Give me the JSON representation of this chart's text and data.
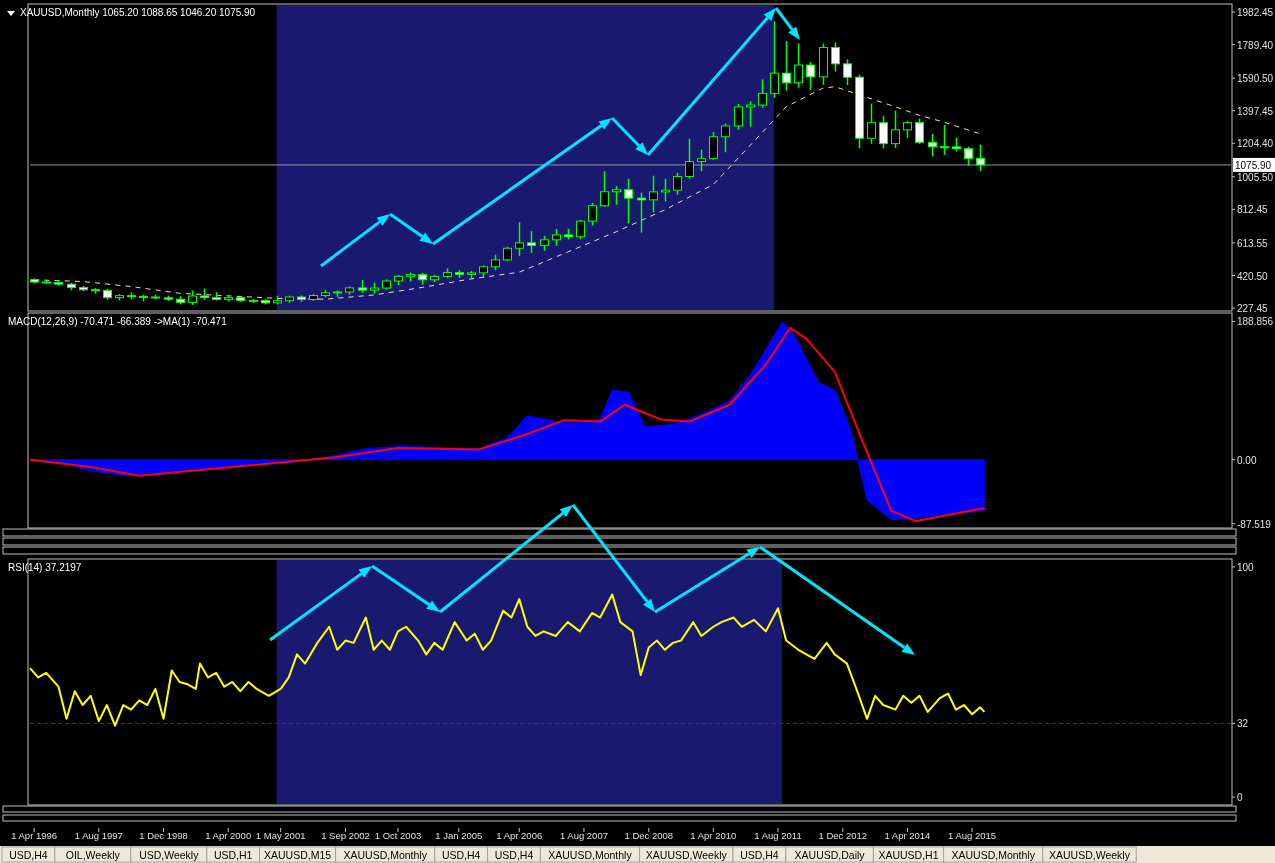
{
  "chart_data": [
    {
      "type": "candlestick",
      "title": "XAUUSD,Monthly  1065.20 1088.65 1046.20 1075.90",
      "color": "#00ff00",
      "tick_labels": "y",
      "xlim": [
        "1996-03",
        "2020-12"
      ],
      "ylim": [
        216,
        2024
      ],
      "yticks": [
        227.45,
        {
          "value": 420.5,
          "label": "420.50"
        },
        613.55,
        812.45,
        {
          "value": 1005.5,
          "label": "1005.50"
        },
        {
          "value": 1204.4,
          "label": "1204.40"
        },
        1397.45,
        {
          "value": 1590.5,
          "label": "1590.50"
        },
        {
          "value": 1789.4,
          "label": "1789.40"
        },
        1982.45
      ],
      "x": [
        "1996-04",
        "1996-07",
        "1996-10",
        "1997-01",
        "1997-04",
        "1997-07",
        "1997-10",
        "1998-01",
        "1998-04",
        "1998-07",
        "1998-10",
        "1999-01",
        "1999-04",
        "1999-07",
        "1999-10",
        "2000-01",
        "2000-04",
        "2000-07",
        "2000-10",
        "2001-01",
        "2001-04",
        "2001-07",
        "2001-10",
        "2002-01",
        "2002-04",
        "2002-07",
        "2002-10",
        "2003-01",
        "2003-04",
        "2003-07",
        "2003-10",
        "2004-01",
        "2004-04",
        "2004-07",
        "2004-10",
        "2005-01",
        "2005-04",
        "2005-07",
        "2005-10",
        "2006-01",
        "2006-04",
        "2006-07",
        "2006-10",
        "2007-01",
        "2007-04",
        "2007-07",
        "2007-10",
        "2008-01",
        "2008-04",
        "2008-07",
        "2008-10",
        "2009-01",
        "2009-04",
        "2009-07",
        "2009-10",
        "2010-01",
        "2010-04",
        "2010-07",
        "2010-10",
        "2011-01",
        "2011-04",
        "2011-07",
        "2011-10",
        "2012-01",
        "2012-04",
        "2012-07",
        "2012-10",
        "2013-01",
        "2013-04",
        "2013-07",
        "2013-10",
        "2014-01",
        "2014-04",
        "2014-07",
        "2014-10",
        "2015-01",
        "2015-04",
        "2015-07",
        "2015-10"
      ],
      "ohlc": [
        [
          396,
          397,
          380,
          382
        ],
        [
          382,
          390,
          378,
          379
        ],
        [
          379,
          385,
          367,
          369
        ],
        [
          369,
          370,
          338,
          349
        ],
        [
          349,
          352,
          335,
          336
        ],
        [
          336,
          340,
          318,
          332
        ],
        [
          332,
          335,
          283,
          289
        ],
        [
          289,
          305,
          279,
          301
        ],
        [
          301,
          315,
          285,
          297
        ],
        [
          297,
          300,
          272,
          293
        ],
        [
          293,
          300,
          285,
          288
        ],
        [
          288,
          295,
          276,
          280
        ],
        [
          280,
          292,
          255,
          261
        ],
        [
          261,
          326,
          252,
          299
        ],
        [
          299,
          338,
          282,
          290
        ],
        [
          290,
          316,
          278,
          279
        ],
        [
          279,
          292,
          272,
          289
        ],
        [
          289,
          291,
          270,
          273
        ],
        [
          273,
          275,
          263,
          273
        ],
        [
          273,
          273,
          255,
          258
        ],
        [
          258,
          295,
          255,
          271
        ],
        [
          271,
          295,
          265,
          293
        ],
        [
          293,
          296,
          270,
          278
        ],
        [
          278,
          304,
          277,
          302
        ],
        [
          302,
          330,
          298,
          318
        ],
        [
          318,
          327,
          299,
          323
        ],
        [
          323,
          350,
          313,
          347
        ],
        [
          347,
          389,
          323,
          334
        ],
        [
          334,
          372,
          319,
          346
        ],
        [
          346,
          391,
          343,
          388
        ],
        [
          388,
          418,
          370,
          416
        ],
        [
          416,
          432,
          390,
          426
        ],
        [
          426,
          430,
          372,
          395
        ],
        [
          395,
          418,
          387,
          415
        ],
        [
          415,
          457,
          411,
          438
        ],
        [
          438,
          446,
          411,
          427
        ],
        [
          427,
          442,
          412,
          436
        ],
        [
          436,
          474,
          416,
          472
        ],
        [
          472,
          538,
          457,
          513
        ],
        [
          513,
          584,
          511,
          582
        ],
        [
          582,
          730,
          541,
          614
        ],
        [
          614,
          677,
          560,
          599
        ],
        [
          599,
          650,
          573,
          632
        ],
        [
          632,
          690,
          603,
          661
        ],
        [
          661,
          692,
          640,
          650
        ],
        [
          650,
          745,
          642,
          743
        ],
        [
          743,
          845,
          722,
          834
        ],
        [
          834,
          1033,
          834,
          917
        ],
        [
          917,
          945,
          846,
          929
        ],
        [
          929,
          988,
          736,
          879
        ],
        [
          879,
          905,
          681,
          869
        ],
        [
          869,
          1006,
          800,
          916
        ],
        [
          916,
          989,
          865,
          926
        ],
        [
          926,
          1023,
          905,
          1007
        ],
        [
          1007,
          1226,
          1000,
          1096
        ],
        [
          1096,
          1161,
          1044,
          1113
        ],
        [
          1113,
          1265,
          1112,
          1243
        ],
        [
          1243,
          1315,
          1157,
          1307
        ],
        [
          1307,
          1431,
          1290,
          1420
        ],
        [
          1420,
          1447,
          1308,
          1431
        ],
        [
          1431,
          1577,
          1420,
          1500
        ],
        [
          1500,
          1921,
          1480,
          1620
        ],
        [
          1620,
          1804,
          1522,
          1563
        ],
        [
          1563,
          1791,
          1540,
          1668
        ],
        [
          1668,
          1680,
          1527,
          1598
        ],
        [
          1598,
          1790,
          1556,
          1772
        ],
        [
          1772,
          1796,
          1635,
          1675
        ],
        [
          1675,
          1696,
          1555,
          1596
        ],
        [
          1596,
          1605,
          1180,
          1234
        ],
        [
          1234,
          1434,
          1208,
          1326
        ],
        [
          1326,
          1361,
          1180,
          1202
        ],
        [
          1202,
          1392,
          1182,
          1284
        ],
        [
          1284,
          1332,
          1240,
          1327
        ],
        [
          1327,
          1345,
          1206,
          1210
        ],
        [
          1210,
          1255,
          1132,
          1184
        ],
        [
          1184,
          1307,
          1142,
          1183
        ],
        [
          1183,
          1232,
          1162,
          1172
        ],
        [
          1172,
          1178,
          1077,
          1115
        ],
        [
          1115,
          1191,
          1046,
          1076
        ]
      ],
      "series": [
        {
          "type": "line",
          "color": "#f5deb3",
          "line_style": "dashed",
          "x": [
            "1996-04",
            "1997-04",
            "1998-04",
            "1999-04",
            "2000-04",
            "2001-04",
            "2002-04",
            "2003-04",
            "2004-04",
            "2005-04",
            "2006-04",
            "2007-04",
            "2008-04",
            "2009-04",
            "2010-04",
            "2011-01",
            "2011-10",
            "2012-07",
            "2012-10",
            "2014-01",
            "2014-07",
            "2015-01",
            "2015-10"
          ],
          "values": [
            395,
            385,
            355,
            315,
            300,
            285,
            280,
            305,
            350,
            400,
            440,
            560,
            680,
            810,
            960,
            1190,
            1420,
            1530,
            1540,
            1420,
            1370,
            1330,
            1260
          ]
        }
      ],
      "ref_lines": [
        {
          "axis": "y",
          "value": 1075.9,
          "label": "1075.90",
          "color": "#8c9aa8"
        }
      ],
      "bands": [
        {
          "axis": "x",
          "from": "2001-04",
          "to": "2011-07",
          "color": "#191970"
        }
      ]
    },
    {
      "type": "area",
      "title": "MACD(12,26,9) -70.471 -66.389  ->MA(1) -70.471",
      "tick_labels": "y",
      "xlim": [
        "1996-03",
        "2020-12"
      ],
      "ylim": [
        -92,
        199
      ],
      "yticks": [
        -87.519,
        {
          "value": 0,
          "label": "0.00"
        },
        188.856
      ],
      "series": [
        {
          "type": "area",
          "color": "#0000ff",
          "x": [
            "1996-03",
            "1996-10",
            "1997-06",
            "1998-03",
            "1998-10",
            "1999-06",
            "2000-06",
            "2001-06",
            "2002-06",
            "2003-02",
            "2003-10",
            "2004-06",
            "2005-06",
            "2006-01",
            "2006-06",
            "2007-01",
            "2007-06",
            "2007-12",
            "2008-03",
            "2008-07",
            "2008-11",
            "2009-06",
            "2010-01",
            "2010-08",
            "2011-01",
            "2011-05",
            "2011-09",
            "2011-12",
            "2012-06",
            "2012-10",
            "2013-02",
            "2013-06",
            "2013-12",
            "2014-06",
            "2015-01",
            "2015-11"
          ],
          "values": [
            0,
            -3,
            -15,
            -22,
            -20,
            -14,
            -8,
            -5,
            5,
            15,
            18,
            17,
            15,
            30,
            60,
            52,
            50,
            55,
            95,
            92,
            45,
            48,
            62,
            80,
            115,
            150,
            188,
            170,
            105,
            95,
            40,
            -55,
            -82,
            -80,
            -75,
            -70
          ]
        },
        {
          "type": "line",
          "color": "#ff0000",
          "x": [
            "1996-03",
            "1997-06",
            "1998-06",
            "2000-01",
            "2002-06",
            "2003-10",
            "2005-06",
            "2006-06",
            "2007-03",
            "2007-12",
            "2008-06",
            "2009-03",
            "2009-10",
            "2010-08",
            "2011-05",
            "2011-11",
            "2012-03",
            "2012-10",
            "2013-06",
            "2013-12",
            "2014-06",
            "2015-11"
          ],
          "values": [
            0,
            -10,
            -22,
            -12,
            3,
            16,
            14,
            35,
            54,
            52,
            75,
            55,
            52,
            75,
            130,
            180,
            165,
            120,
            10,
            -70,
            -84,
            -66
          ]
        }
      ]
    },
    {
      "type": "line",
      "title": "RSI(14) 37.2197",
      "xlim": [
        "1996-03",
        "2020-12"
      ],
      "ylim": [
        -3,
        103
      ],
      "yticks": [
        0,
        32,
        100
      ],
      "xticks": [
        {
          "value": "1996-04-01",
          "label": "1 Apr 1996"
        },
        {
          "value": "1997-08-01",
          "label": "1 Aug 1997"
        },
        {
          "value": "1998-12-01",
          "label": "1 Dec 1998"
        },
        {
          "value": "2000-04-01",
          "label": "1 Apr 2000"
        },
        {
          "value": "2001-05-01",
          "label": "1 May 2001"
        },
        {
          "value": "2002-09-01",
          "label": "1 Sep 2002"
        },
        {
          "value": "2003-10-01",
          "label": "1 Oct 2003"
        },
        {
          "value": "2005-01-01",
          "label": "1 Jan 2005"
        },
        {
          "value": "2006-04-01",
          "label": "1 Apr 2006"
        },
        {
          "value": "2007-08-01",
          "label": "1 Aug 2007"
        },
        {
          "value": "2008-12-01",
          "label": "1 Dec 2008"
        },
        {
          "value": "2010-04-01",
          "label": "1 Apr 2010"
        },
        {
          "value": "2011-08-01",
          "label": "1 Aug 2011"
        },
        {
          "value": "2012-12-01",
          "label": "1 Dec 2012"
        },
        {
          "value": "2014-04-01",
          "label": "1 Apr 2014"
        },
        {
          "value": "2015-08-01",
          "label": "1 Aug 2015"
        }
      ],
      "series": [
        {
          "color": "#ffff00",
          "x": [
            "1996-03",
            "1996-05",
            "1996-07",
            "1996-10",
            "1996-12",
            "1997-02",
            "1997-04",
            "1997-06",
            "1997-08",
            "1997-10",
            "1997-12",
            "1998-02",
            "1998-04",
            "1998-06",
            "1998-08",
            "1998-10",
            "1998-12",
            "1999-02",
            "1999-04",
            "1999-06",
            "1999-08",
            "1999-09",
            "1999-11",
            "2000-01",
            "2000-03",
            "2000-05",
            "2000-07",
            "2000-09",
            "2000-11",
            "2001-02",
            "2001-05",
            "2001-07",
            "2001-09",
            "2001-11",
            "2002-02",
            "2002-05",
            "2002-07",
            "2002-09",
            "2002-11",
            "2003-02",
            "2003-04",
            "2003-06",
            "2003-08",
            "2003-10",
            "2003-12",
            "2004-03",
            "2004-05",
            "2004-07",
            "2004-09",
            "2004-12",
            "2005-03",
            "2005-05",
            "2005-07",
            "2005-09",
            "2005-12",
            "2006-02",
            "2006-04",
            "2006-06",
            "2006-08",
            "2006-10",
            "2007-01",
            "2007-04",
            "2007-07",
            "2007-10",
            "2007-12",
            "2008-03",
            "2008-05",
            "2008-08",
            "2008-10",
            "2008-12",
            "2009-02",
            "2009-04",
            "2009-06",
            "2009-08",
            "2009-11",
            "2010-01",
            "2010-04",
            "2010-06",
            "2010-09",
            "2010-11",
            "2011-02",
            "2011-05",
            "2011-08",
            "2011-10",
            "2012-01",
            "2012-03",
            "2012-05",
            "2012-08",
            "2012-10",
            "2013-01",
            "2013-04",
            "2013-06",
            "2013-08",
            "2013-10",
            "2014-01",
            "2014-03",
            "2014-05",
            "2014-07",
            "2014-09",
            "2014-12",
            "2015-02",
            "2015-04",
            "2015-06",
            "2015-08",
            "2015-10",
            "2015-11"
          ],
          "values": [
            56,
            52,
            54,
            48,
            34,
            46,
            40,
            44,
            33,
            40,
            31,
            40,
            38,
            42,
            40,
            47,
            34,
            55,
            50,
            49,
            47,
            58,
            52,
            54,
            48,
            50,
            46,
            50,
            47,
            44,
            47,
            52,
            62,
            58,
            67,
            74,
            64,
            68,
            67,
            78,
            64,
            68,
            64,
            72,
            74,
            68,
            62,
            67,
            64,
            76,
            68,
            71,
            64,
            68,
            81,
            78,
            86,
            74,
            70,
            72,
            70,
            76,
            72,
            80,
            78,
            88,
            76,
            72,
            53,
            65,
            68,
            64,
            67,
            68,
            76,
            70,
            74,
            76,
            78,
            74,
            77,
            72,
            82,
            68,
            64,
            62,
            60,
            67,
            62,
            58,
            44,
            34,
            44,
            40,
            38,
            44,
            41,
            44,
            37,
            43,
            45,
            38,
            40,
            36,
            39,
            37
          ]
        }
      ],
      "ref_lines": [
        {
          "axis": "y",
          "value": 32,
          "color": "#6a0dad",
          "line_style": "dashed"
        }
      ],
      "bands": [
        {
          "axis": "x",
          "from": "2001-04",
          "to": "2011-09",
          "color": "#191970"
        }
      ]
    },
    {
      "type": "other",
      "annotations": [
        "USD,H4",
        "OIL,Weekly",
        "USD,Weekly",
        "USD,H1",
        "XAUUSD,M15",
        "XAUUSD,Monthly",
        "USD,H4",
        "USD,H4",
        "XAUUSD,Monthly",
        "XAUUSD,Weekly",
        "USD,H4",
        "XAUUSD,Daily",
        "XAUUSD,H1",
        "XAUUSD,Monthly",
        "XAUUSD,Weekly"
      ]
    }
  ]
}
